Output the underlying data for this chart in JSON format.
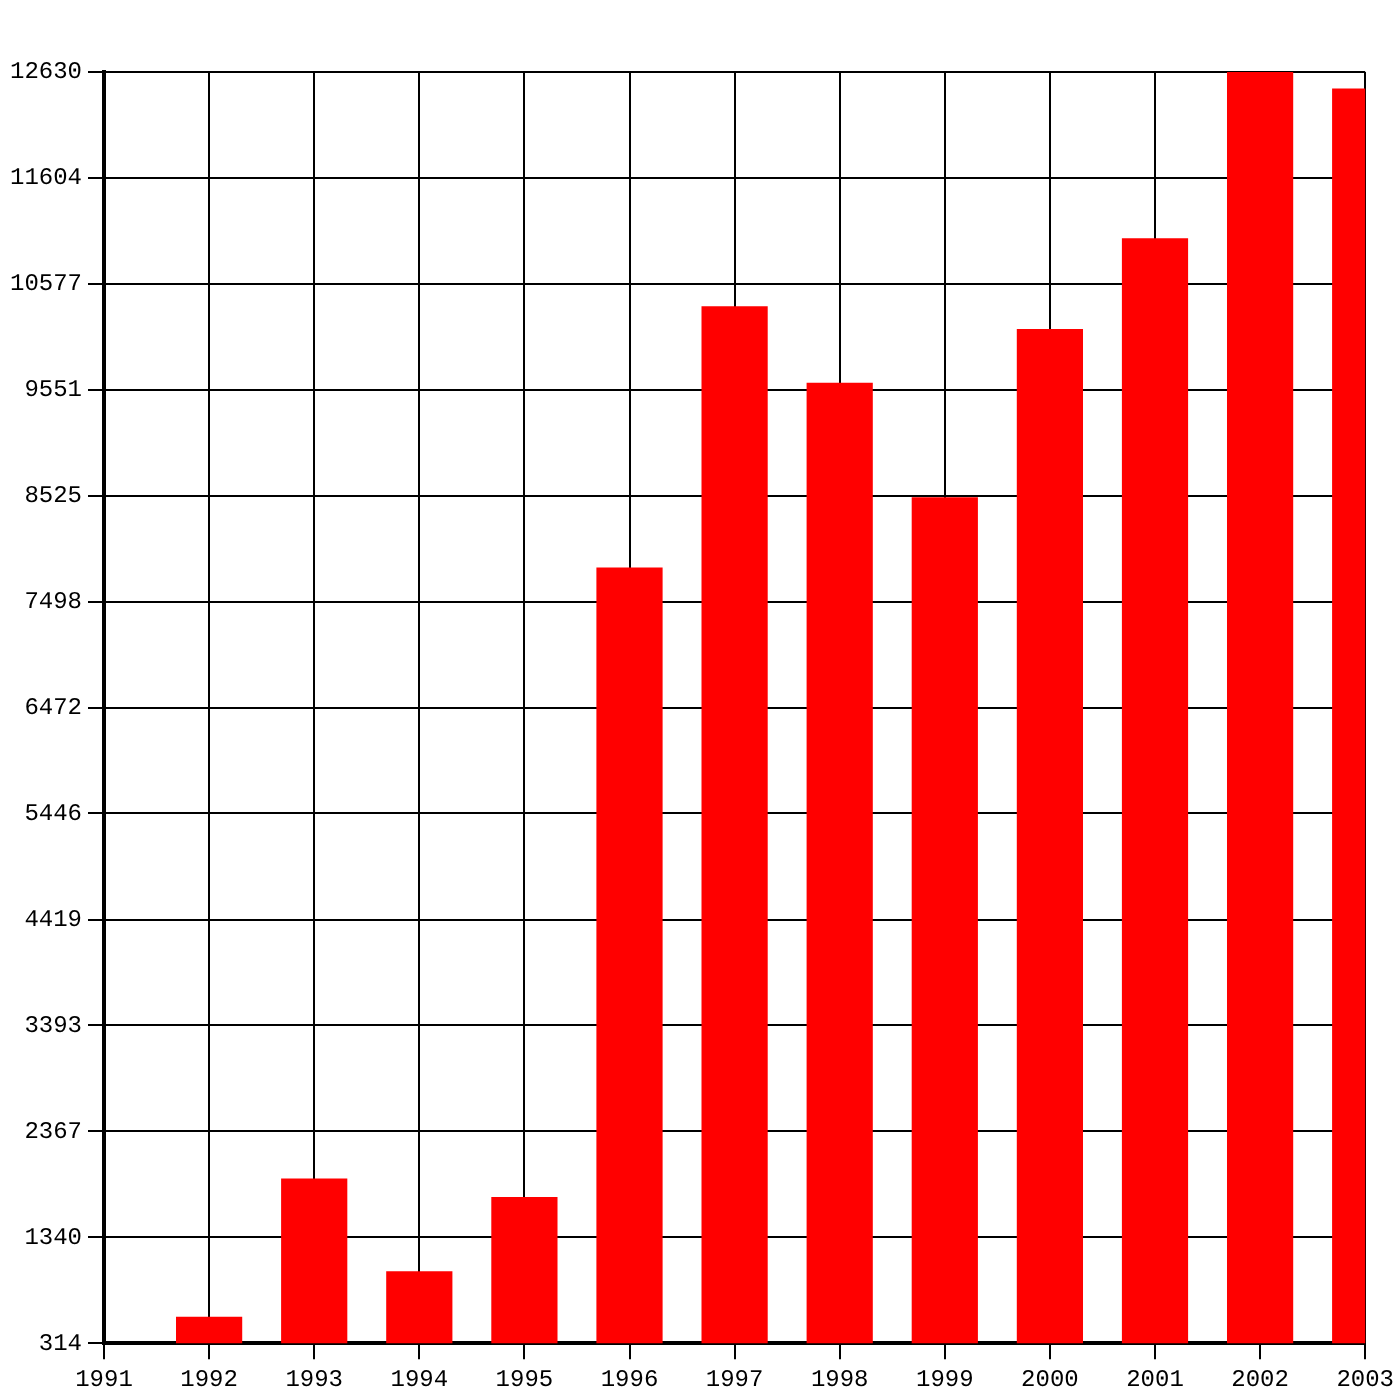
{
  "chart_data": {
    "type": "bar",
    "categories": [
      "1991",
      "1992",
      "1993",
      "1994",
      "1995",
      "1996",
      "1997",
      "1998",
      "1999",
      "2000",
      "2001",
      "2002",
      "2003"
    ],
    "values": [
      null,
      570,
      1910,
      1010,
      1730,
      7830,
      10360,
      9620,
      8510,
      10140,
      11020,
      12630,
      12470
    ],
    "color": "#ff0000",
    "ylim": [
      314,
      12630
    ],
    "yticks": [
      314,
      1340,
      2367,
      3393,
      4419,
      5446,
      6472,
      7498,
      8525,
      9551,
      10577,
      11604,
      12630
    ],
    "grid": true,
    "legend": false
  }
}
